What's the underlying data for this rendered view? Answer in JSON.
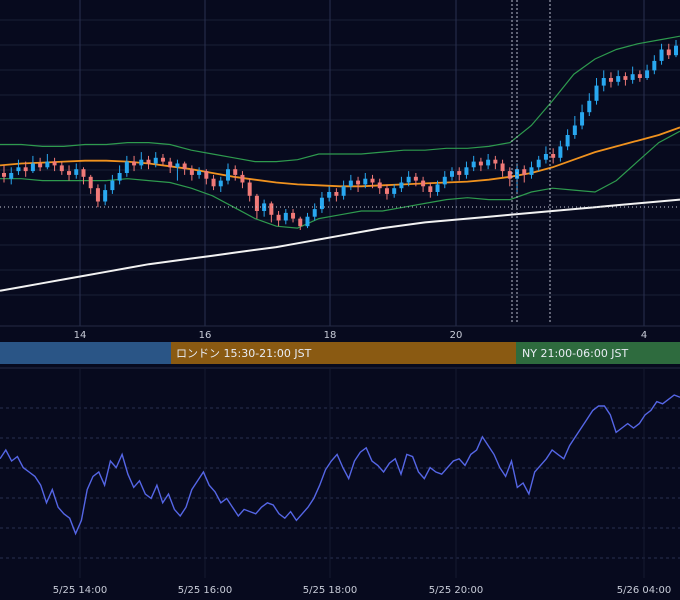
{
  "theme": {
    "background": "#070a1e",
    "grid": "#1a2037",
    "separator": "#242a44",
    "bull": "#29a8f0",
    "bear": "#f07a78",
    "ma_short": "#f0921e",
    "ma_long": "#f2f2f2",
    "bollinger": "#2e9a4e",
    "rsi": "#5566e6",
    "tick_text": "#c8ccd8"
  },
  "sessions": [
    {
      "name": "tokyo",
      "label": "",
      "color": "#2a5586"
    },
    {
      "name": "london",
      "label": "ロンドン 15:30-21:00 JST",
      "color": "#8a5a12"
    },
    {
      "name": "newyork",
      "label": "NY 21:00-06:00 JST",
      "color": "#2e6b3e"
    }
  ],
  "chart_data": {
    "type": "line",
    "upper_x_ticks": [
      "14",
      "16",
      "18",
      "20",
      "4"
    ],
    "lower_x_ticks": [
      "5/25 14:00",
      "5/25 16:00",
      "5/25 18:00",
      "5/25 20:00",
      "5/26 04:00"
    ],
    "candles": [
      [
        0.3,
        0.28,
        0.34,
        0.25
      ],
      [
        0.27,
        0.3,
        0.33,
        0.24
      ],
      [
        0.31,
        0.33,
        0.37,
        0.29
      ],
      [
        0.33,
        0.31,
        0.36,
        0.28
      ],
      [
        0.31,
        0.35,
        0.39,
        0.3
      ],
      [
        0.35,
        0.33,
        0.38,
        0.31
      ],
      [
        0.33,
        0.36,
        0.4,
        0.32
      ],
      [
        0.36,
        0.34,
        0.38,
        0.31
      ],
      [
        0.34,
        0.31,
        0.36,
        0.29
      ],
      [
        0.31,
        0.29,
        0.34,
        0.26
      ],
      [
        0.29,
        0.32,
        0.35,
        0.27
      ],
      [
        0.32,
        0.28,
        0.33,
        0.24
      ],
      [
        0.28,
        0.22,
        0.29,
        0.19
      ],
      [
        0.22,
        0.15,
        0.24,
        0.12
      ],
      [
        0.15,
        0.21,
        0.24,
        0.13
      ],
      [
        0.21,
        0.26,
        0.29,
        0.19
      ],
      [
        0.26,
        0.3,
        0.34,
        0.24
      ],
      [
        0.3,
        0.36,
        0.39,
        0.28
      ],
      [
        0.36,
        0.34,
        0.39,
        0.31
      ],
      [
        0.34,
        0.37,
        0.41,
        0.32
      ],
      [
        0.37,
        0.35,
        0.39,
        0.32
      ],
      [
        0.35,
        0.38,
        0.41,
        0.33
      ],
      [
        0.38,
        0.36,
        0.4,
        0.34
      ],
      [
        0.36,
        0.33,
        0.38,
        0.3
      ],
      [
        0.33,
        0.35,
        0.37,
        0.26
      ],
      [
        0.35,
        0.32,
        0.36,
        0.29
      ],
      [
        0.32,
        0.29,
        0.34,
        0.26
      ],
      [
        0.29,
        0.31,
        0.33,
        0.27
      ],
      [
        0.31,
        0.27,
        0.32,
        0.24
      ],
      [
        0.27,
        0.23,
        0.29,
        0.21
      ],
      [
        0.23,
        0.26,
        0.28,
        0.2
      ],
      [
        0.26,
        0.32,
        0.35,
        0.24
      ],
      [
        0.32,
        0.29,
        0.34,
        0.26
      ],
      [
        0.29,
        0.25,
        0.31,
        0.22
      ],
      [
        0.25,
        0.18,
        0.27,
        0.15
      ],
      [
        0.18,
        0.1,
        0.19,
        0.06
      ],
      [
        0.1,
        0.14,
        0.16,
        0.07
      ],
      [
        0.14,
        0.08,
        0.15,
        0.04
      ],
      [
        0.08,
        0.05,
        0.1,
        0.02
      ],
      [
        0.05,
        0.09,
        0.11,
        0.03
      ],
      [
        0.09,
        0.06,
        0.11,
        0.04
      ],
      [
        0.06,
        0.02,
        0.07,
        0.0
      ],
      [
        0.02,
        0.07,
        0.09,
        0.01
      ],
      [
        0.07,
        0.11,
        0.14,
        0.05
      ],
      [
        0.11,
        0.17,
        0.2,
        0.09
      ],
      [
        0.17,
        0.2,
        0.23,
        0.15
      ],
      [
        0.2,
        0.18,
        0.22,
        0.15
      ],
      [
        0.18,
        0.23,
        0.26,
        0.16
      ],
      [
        0.23,
        0.26,
        0.29,
        0.21
      ],
      [
        0.26,
        0.24,
        0.28,
        0.2
      ],
      [
        0.24,
        0.27,
        0.3,
        0.22
      ],
      [
        0.27,
        0.25,
        0.29,
        0.22
      ],
      [
        0.25,
        0.22,
        0.27,
        0.19
      ],
      [
        0.22,
        0.19,
        0.24,
        0.16
      ],
      [
        0.19,
        0.22,
        0.24,
        0.17
      ],
      [
        0.22,
        0.25,
        0.28,
        0.2
      ],
      [
        0.25,
        0.28,
        0.31,
        0.23
      ],
      [
        0.28,
        0.26,
        0.3,
        0.23
      ],
      [
        0.26,
        0.23,
        0.28,
        0.2
      ],
      [
        0.23,
        0.2,
        0.25,
        0.17
      ],
      [
        0.2,
        0.24,
        0.26,
        0.18
      ],
      [
        0.24,
        0.28,
        0.31,
        0.22
      ],
      [
        0.28,
        0.31,
        0.33,
        0.26
      ],
      [
        0.31,
        0.29,
        0.33,
        0.26
      ],
      [
        0.29,
        0.33,
        0.36,
        0.27
      ],
      [
        0.33,
        0.36,
        0.39,
        0.31
      ],
      [
        0.36,
        0.34,
        0.38,
        0.31
      ],
      [
        0.34,
        0.37,
        0.4,
        0.32
      ],
      [
        0.37,
        0.35,
        0.39,
        0.32
      ],
      [
        0.35,
        0.31,
        0.37,
        0.28
      ],
      [
        0.31,
        0.27,
        0.33,
        0.23
      ],
      [
        0.27,
        0.32,
        0.35,
        0.2
      ],
      [
        0.32,
        0.29,
        0.34,
        0.25
      ],
      [
        0.29,
        0.33,
        0.36,
        0.27
      ],
      [
        0.33,
        0.37,
        0.39,
        0.31
      ],
      [
        0.37,
        0.4,
        0.44,
        0.35
      ],
      [
        0.4,
        0.38,
        0.43,
        0.35
      ],
      [
        0.38,
        0.44,
        0.47,
        0.36
      ],
      [
        0.44,
        0.5,
        0.53,
        0.42
      ],
      [
        0.5,
        0.55,
        0.6,
        0.48
      ],
      [
        0.55,
        0.62,
        0.66,
        0.53
      ],
      [
        0.62,
        0.68,
        0.72,
        0.6
      ],
      [
        0.68,
        0.76,
        0.8,
        0.66
      ],
      [
        0.76,
        0.8,
        0.84,
        0.73
      ],
      [
        0.8,
        0.78,
        0.83,
        0.75
      ],
      [
        0.78,
        0.81,
        0.84,
        0.76
      ],
      [
        0.81,
        0.79,
        0.83,
        0.76
      ],
      [
        0.79,
        0.82,
        0.86,
        0.77
      ],
      [
        0.82,
        0.8,
        0.84,
        0.78
      ],
      [
        0.8,
        0.84,
        0.87,
        0.79
      ],
      [
        0.84,
        0.89,
        0.92,
        0.82
      ],
      [
        0.89,
        0.95,
        0.98,
        0.87
      ],
      [
        0.95,
        0.92,
        0.98,
        0.9
      ],
      [
        0.92,
        0.97,
        1.0,
        0.91
      ]
    ],
    "ma_short": [
      0.34,
      0.35,
      0.355,
      0.36,
      0.365,
      0.365,
      0.36,
      0.35,
      0.335,
      0.32,
      0.3,
      0.28,
      0.265,
      0.25,
      0.24,
      0.235,
      0.23,
      0.23,
      0.235,
      0.24,
      0.245,
      0.25,
      0.255,
      0.265,
      0.28,
      0.3,
      0.33,
      0.37,
      0.41,
      0.44,
      0.47,
      0.5,
      0.54
    ],
    "ma_long": [
      0.0,
      0.02,
      0.04,
      0.06,
      0.08,
      0.1,
      0.12,
      0.14,
      0.155,
      0.17,
      0.185,
      0.2,
      0.215,
      0.23,
      0.25,
      0.27,
      0.29,
      0.31,
      0.33,
      0.345,
      0.36,
      0.37,
      0.38,
      0.39,
      0.4,
      0.41,
      0.42,
      0.43,
      0.44,
      0.45,
      0.46,
      0.47,
      0.48
    ],
    "bb_upper": [
      0.45,
      0.45,
      0.44,
      0.44,
      0.45,
      0.45,
      0.46,
      0.46,
      0.45,
      0.42,
      0.4,
      0.38,
      0.36,
      0.36,
      0.37,
      0.4,
      0.4,
      0.4,
      0.41,
      0.42,
      0.42,
      0.43,
      0.43,
      0.44,
      0.46,
      0.55,
      0.68,
      0.82,
      0.9,
      0.95,
      0.98,
      1.0,
      1.02
    ],
    "bb_lower": [
      0.27,
      0.27,
      0.26,
      0.26,
      0.26,
      0.26,
      0.27,
      0.26,
      0.25,
      0.22,
      0.18,
      0.12,
      0.06,
      0.02,
      0.01,
      0.06,
      0.08,
      0.1,
      0.1,
      0.12,
      0.14,
      0.16,
      0.17,
      0.16,
      0.16,
      0.2,
      0.22,
      0.21,
      0.2,
      0.26,
      0.36,
      0.46,
      0.52
    ],
    "rsi": [
      56,
      60,
      55,
      57,
      52,
      50,
      48,
      44,
      36,
      42,
      34,
      31,
      29,
      22,
      28,
      42,
      48,
      50,
      44,
      55,
      52,
      58,
      49,
      43,
      46,
      40,
      38,
      44,
      36,
      40,
      33,
      30,
      34,
      42,
      46,
      50,
      44,
      41,
      36,
      38,
      34,
      30,
      33,
      32,
      31,
      34,
      36,
      35,
      31,
      29,
      32,
      28,
      31,
      34,
      38,
      44,
      51,
      55,
      58,
      52,
      47,
      55,
      59,
      61,
      55,
      53,
      50,
      54,
      56,
      49,
      58,
      57,
      50,
      47,
      52,
      50,
      49,
      52,
      55,
      56,
      53,
      58,
      60,
      66,
      62,
      58,
      52,
      48,
      55,
      43,
      45,
      40,
      50,
      53,
      56,
      60,
      58,
      56,
      62,
      66,
      70,
      74,
      78,
      80,
      80,
      76,
      68,
      70,
      72,
      70,
      72,
      76,
      78,
      82,
      81,
      83,
      85,
      84
    ]
  }
}
